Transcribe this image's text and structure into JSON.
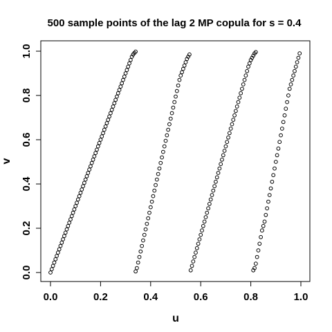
{
  "chart_data": {
    "type": "scatter",
    "title": "500 sample points of the lag 2 MP copula for s = 0.4",
    "xlabel": "u",
    "ylabel": "v",
    "xlim": [
      0.0,
      1.0
    ],
    "ylim": [
      0.0,
      1.0
    ],
    "x_ticks": [
      "0.0",
      "0.2",
      "0.4",
      "0.6",
      "0.8",
      "1.0"
    ],
    "y_ticks": [
      "0.0",
      "0.2",
      "0.4",
      "0.6",
      "0.8",
      "1.0"
    ],
    "grid": false,
    "marker": "open-circle",
    "point_color": "#000000",
    "series": [
      {
        "segment": 1,
        "x": [
          0.0,
          0.005,
          0.01,
          0.015,
          0.02,
          0.025,
          0.03,
          0.035,
          0.04,
          0.045,
          0.05,
          0.055,
          0.06,
          0.065,
          0.07,
          0.075,
          0.08,
          0.085,
          0.09,
          0.095,
          0.1,
          0.105,
          0.11,
          0.115,
          0.12,
          0.125,
          0.13,
          0.135,
          0.14,
          0.145,
          0.15,
          0.155,
          0.16,
          0.165,
          0.17,
          0.175,
          0.18,
          0.185,
          0.19,
          0.195,
          0.2,
          0.205,
          0.21,
          0.215,
          0.22,
          0.225,
          0.23,
          0.235,
          0.24,
          0.245,
          0.25,
          0.255,
          0.26,
          0.265,
          0.27,
          0.275,
          0.28,
          0.285,
          0.29,
          0.295,
          0.3,
          0.305,
          0.31,
          0.315,
          0.32,
          0.325,
          0.33,
          0.335,
          0.34
        ],
        "y": [
          0.0,
          0.015,
          0.03,
          0.045,
          0.06,
          0.075,
          0.09,
          0.105,
          0.12,
          0.135,
          0.15,
          0.165,
          0.18,
          0.195,
          0.21,
          0.225,
          0.24,
          0.255,
          0.27,
          0.285,
          0.3,
          0.315,
          0.33,
          0.345,
          0.36,
          0.375,
          0.39,
          0.405,
          0.42,
          0.435,
          0.45,
          0.465,
          0.48,
          0.495,
          0.51,
          0.525,
          0.54,
          0.555,
          0.57,
          0.585,
          0.6,
          0.615,
          0.63,
          0.645,
          0.66,
          0.675,
          0.69,
          0.705,
          0.72,
          0.735,
          0.75,
          0.765,
          0.78,
          0.795,
          0.81,
          0.825,
          0.84,
          0.855,
          0.87,
          0.885,
          0.9,
          0.915,
          0.93,
          0.945,
          0.96,
          0.975,
          0.985,
          0.992,
          0.998
        ]
      },
      {
        "segment": 2,
        "x": [
          0.34,
          0.345,
          0.35,
          0.355,
          0.36,
          0.365,
          0.37,
          0.375,
          0.38,
          0.385,
          0.39,
          0.395,
          0.4,
          0.405,
          0.41,
          0.415,
          0.42,
          0.425,
          0.43,
          0.435,
          0.44,
          0.445,
          0.45,
          0.455,
          0.46,
          0.465,
          0.47,
          0.475,
          0.48,
          0.485,
          0.49,
          0.495,
          0.5,
          0.505,
          0.51,
          0.515,
          0.52,
          0.525,
          0.53,
          0.535,
          0.54,
          0.545,
          0.55,
          0.555
        ],
        "y": [
          0.005,
          0.02,
          0.045,
          0.07,
          0.095,
          0.12,
          0.145,
          0.17,
          0.195,
          0.22,
          0.245,
          0.27,
          0.295,
          0.32,
          0.345,
          0.37,
          0.395,
          0.42,
          0.445,
          0.47,
          0.495,
          0.52,
          0.545,
          0.57,
          0.595,
          0.62,
          0.645,
          0.67,
          0.695,
          0.72,
          0.745,
          0.77,
          0.795,
          0.82,
          0.845,
          0.87,
          0.89,
          0.905,
          0.92,
          0.935,
          0.95,
          0.965,
          0.975,
          0.985
        ]
      },
      {
        "segment": 3,
        "x": [
          0.56,
          0.565,
          0.57,
          0.575,
          0.58,
          0.585,
          0.59,
          0.595,
          0.6,
          0.605,
          0.61,
          0.615,
          0.62,
          0.625,
          0.63,
          0.635,
          0.64,
          0.645,
          0.65,
          0.655,
          0.66,
          0.665,
          0.67,
          0.675,
          0.68,
          0.685,
          0.69,
          0.695,
          0.7,
          0.705,
          0.71,
          0.715,
          0.72,
          0.725,
          0.73,
          0.735,
          0.74,
          0.745,
          0.75,
          0.755,
          0.76,
          0.765,
          0.77,
          0.775,
          0.78,
          0.785,
          0.79,
          0.795,
          0.8,
          0.805,
          0.81,
          0.815,
          0.82
        ],
        "y": [
          0.01,
          0.03,
          0.05,
          0.07,
          0.09,
          0.11,
          0.13,
          0.15,
          0.17,
          0.19,
          0.21,
          0.23,
          0.25,
          0.27,
          0.29,
          0.31,
          0.33,
          0.35,
          0.37,
          0.39,
          0.41,
          0.43,
          0.45,
          0.47,
          0.49,
          0.51,
          0.53,
          0.55,
          0.57,
          0.59,
          0.61,
          0.63,
          0.65,
          0.67,
          0.69,
          0.71,
          0.73,
          0.75,
          0.77,
          0.79,
          0.81,
          0.83,
          0.85,
          0.87,
          0.89,
          0.91,
          0.93,
          0.945,
          0.96,
          0.97,
          0.98,
          0.99,
          0.996
        ]
      },
      {
        "segment": 4,
        "x": [
          0.81,
          0.815,
          0.82,
          0.825,
          0.83,
          0.835,
          0.84,
          0.845,
          0.85,
          0.855,
          0.86,
          0.865,
          0.87,
          0.875,
          0.88,
          0.885,
          0.89,
          0.895,
          0.9,
          0.905,
          0.91,
          0.915,
          0.92,
          0.925,
          0.93,
          0.935,
          0.94,
          0.945,
          0.95,
          0.955,
          0.96,
          0.965,
          0.97,
          0.975,
          0.98,
          0.985,
          0.99,
          0.995
        ],
        "y": [
          0.01,
          0.02,
          0.04,
          0.07,
          0.1,
          0.13,
          0.16,
          0.19,
          0.21,
          0.23,
          0.26,
          0.29,
          0.32,
          0.35,
          0.38,
          0.41,
          0.44,
          0.47,
          0.5,
          0.53,
          0.56,
          0.59,
          0.62,
          0.65,
          0.68,
          0.71,
          0.74,
          0.77,
          0.8,
          0.83,
          0.85,
          0.87,
          0.89,
          0.91,
          0.93,
          0.95,
          0.97,
          0.99
        ]
      }
    ]
  }
}
